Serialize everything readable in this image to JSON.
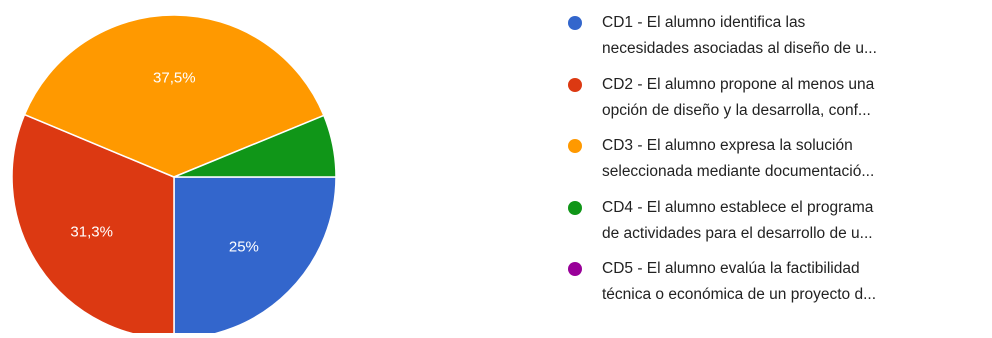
{
  "chart_data": {
    "type": "pie",
    "slices": [
      {
        "label_line1": "CD1 - El alumno identifica las",
        "label_line2": "necesidades asociadas al diseño de u...",
        "value": 25,
        "display": "25%",
        "color": "#3366cc"
      },
      {
        "label_line1": "CD2 - El alumno propone al menos una",
        "label_line2": "opción de diseño y la desarrolla, conf...",
        "value": 31.3,
        "display": "31,3%",
        "color": "#dc3912"
      },
      {
        "label_line1": "CD3 - El alumno expresa la solución",
        "label_line2": "seleccionada mediante documentació...",
        "value": 37.5,
        "display": "37,5%",
        "color": "#ff9900"
      },
      {
        "label_line1": "CD4 - El alumno establece el programa",
        "label_line2": "de actividades para el desarrollo de u...",
        "value": 6.2,
        "display": "",
        "color": "#109618"
      },
      {
        "label_line1": "CD5 - El alumno evalúa la factibilidad",
        "label_line2": "técnica o económica de un proyecto d...",
        "value": 0,
        "display": "",
        "color": "#990099"
      }
    ],
    "legend_position": "right"
  }
}
